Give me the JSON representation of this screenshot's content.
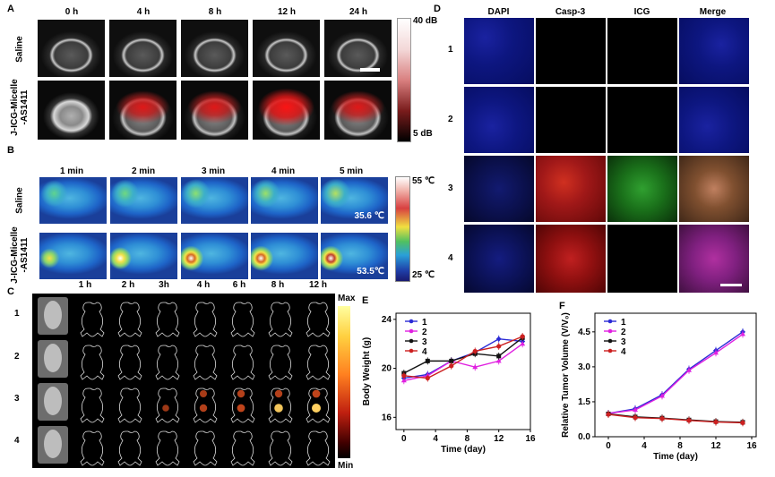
{
  "panel_a": {
    "label": "A",
    "times": [
      "0 h",
      "4 h",
      "8 h",
      "12 h",
      "24 h"
    ],
    "rows": [
      "Saline",
      "J-ICG-Micelle\n-AS1411"
    ],
    "colorbar_max": "40 dB",
    "colorbar_min": "5 dB"
  },
  "panel_b": {
    "label": "B",
    "times": [
      "1 min",
      "2 min",
      "3 min",
      "4 min",
      "5 min"
    ],
    "rows": [
      "Saline",
      "J-ICG-Micelle\n-AS1411"
    ],
    "temp_saline": "35.6 ℃",
    "temp_micelle": "53.5℃",
    "colorbar_max": "55 ℃",
    "colorbar_min": "25 ℃"
  },
  "panel_c": {
    "label": "C",
    "times": [
      "1 h",
      "2 h",
      "3h",
      "4 h",
      "6 h",
      "8 h",
      "12 h"
    ],
    "rows": [
      "1",
      "2",
      "3",
      "4"
    ],
    "colorbar_max": "Max",
    "colorbar_min": "Min"
  },
  "panel_d": {
    "label": "D",
    "columns": [
      "DAPI",
      "Casp-3",
      "ICG",
      "Merge"
    ],
    "rows": [
      "1",
      "2",
      "3",
      "4"
    ]
  },
  "panel_e": {
    "label": "E"
  },
  "panel_f": {
    "label": "F"
  },
  "chart_data": [
    {
      "id": "E",
      "type": "line",
      "title": "",
      "xlabel": "Time (day)",
      "ylabel": "Body Weight (g)",
      "xlim": [
        -1,
        16
      ],
      "ylim": [
        15,
        24.5
      ],
      "xticks": [
        0,
        4,
        8,
        12,
        16
      ],
      "yticks": [
        16,
        20,
        24
      ],
      "series": [
        {
          "name": "1",
          "color": "#2b2bd6",
          "x": [
            0,
            3,
            6,
            9,
            12,
            15
          ],
          "values": [
            19.2,
            19.5,
            20.6,
            21.3,
            22.4,
            22.2
          ]
        },
        {
          "name": "2",
          "color": "#e020e0",
          "x": [
            0,
            3,
            6,
            9,
            12,
            15
          ],
          "values": [
            19.0,
            19.4,
            20.6,
            20.1,
            20.6,
            22.0
          ]
        },
        {
          "name": "3",
          "color": "#111111",
          "x": [
            0,
            3,
            6,
            9,
            12,
            15
          ],
          "values": [
            19.6,
            20.6,
            20.6,
            21.2,
            21.0,
            22.5
          ]
        },
        {
          "name": "4",
          "color": "#cc2020",
          "x": [
            0,
            3,
            6,
            9,
            12,
            15
          ],
          "values": [
            19.4,
            19.2,
            20.2,
            21.4,
            21.8,
            22.6
          ]
        }
      ]
    },
    {
      "id": "F",
      "type": "line",
      "title": "",
      "xlabel": "Time (day)",
      "ylabel": "Relative Tumor Volume (V/V₀)",
      "xlim": [
        -1.5,
        16.5
      ],
      "ylim": [
        0,
        5.3
      ],
      "xticks": [
        0,
        4,
        8,
        12,
        16
      ],
      "yticks": [
        0.0,
        1.5,
        3.0,
        4.5
      ],
      "yticklabels": [
        "0.0",
        "1.5",
        "3.0",
        "4.5"
      ],
      "series": [
        {
          "name": "1",
          "color": "#2b2bd6",
          "x": [
            0,
            3,
            6,
            9,
            12,
            15
          ],
          "values": [
            1.0,
            1.2,
            1.8,
            2.9,
            3.7,
            4.5
          ]
        },
        {
          "name": "2",
          "color": "#e020e0",
          "x": [
            0,
            3,
            6,
            9,
            12,
            15
          ],
          "values": [
            1.0,
            1.15,
            1.75,
            2.85,
            3.6,
            4.4
          ]
        },
        {
          "name": "3",
          "color": "#111111",
          "x": [
            0,
            3,
            6,
            9,
            12,
            15
          ],
          "values": [
            0.98,
            0.85,
            0.8,
            0.72,
            0.65,
            0.62
          ]
        },
        {
          "name": "4",
          "color": "#cc2020",
          "x": [
            0,
            3,
            6,
            9,
            12,
            15
          ],
          "values": [
            0.96,
            0.82,
            0.78,
            0.7,
            0.63,
            0.6
          ]
        }
      ]
    }
  ]
}
